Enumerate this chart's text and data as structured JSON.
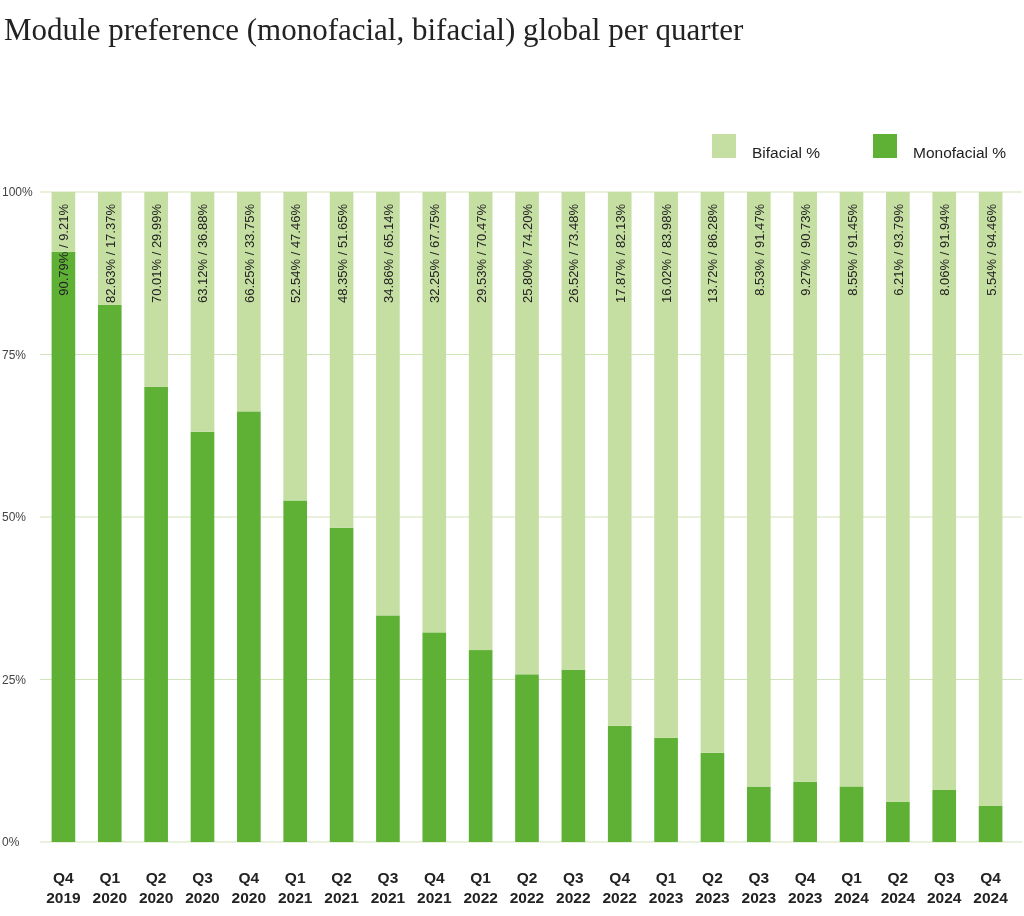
{
  "chart_data": {
    "type": "bar",
    "title": "Module preference (monofacial, bifacial) global per quarter",
    "categories": [
      "Q4 2019",
      "Q1 2020",
      "Q2 2020",
      "Q3 2020",
      "Q4 2020",
      "Q1 2021",
      "Q2 2021",
      "Q3 2021",
      "Q4 2021",
      "Q1 2022",
      "Q2 2022",
      "Q3 2022",
      "Q4 2022",
      "Q1 2023",
      "Q2 2023",
      "Q3 2023",
      "Q4 2023",
      "Q1 2024",
      "Q2 2024",
      "Q3 2024",
      "Q4 2024"
    ],
    "stacked": true,
    "series": [
      {
        "name": "Monofacial %",
        "color": "#5fb136",
        "values": [
          90.79,
          82.63,
          70.01,
          63.12,
          66.25,
          52.54,
          48.35,
          34.86,
          32.25,
          29.53,
          25.8,
          26.52,
          17.87,
          16.02,
          13.72,
          8.53,
          9.27,
          8.55,
          6.21,
          8.06,
          5.54
        ]
      },
      {
        "name": "Bifacial %",
        "color": "#c5dea2",
        "values": [
          9.21,
          17.37,
          29.99,
          36.88,
          33.75,
          47.46,
          51.65,
          65.14,
          67.75,
          70.47,
          74.2,
          73.48,
          82.13,
          83.98,
          86.28,
          91.47,
          90.73,
          91.45,
          93.79,
          91.94,
          94.46
        ],
        "value_labels": [
          "90.79% / 9.21%",
          "82.63% / 17.37%",
          "70.01% / 29.99%",
          "63.12% / 36.88%",
          "66.25% / 33.75%",
          "52.54% / 47.46%",
          "48.35% / 51.65%",
          "34.86% / 65.14%",
          "32.25% / 67.75%",
          "29.53% / 70.47%",
          "25.80% / 74.20%",
          "26.52% / 73.48%",
          "17.87% / 82.13%",
          "16.02% / 83.98%",
          "13.72% / 86.28%",
          "8.53% / 91.47%",
          "9.27% / 90.73%",
          "8.55% / 91.45%",
          "6.21% / 93.79%",
          "8.06% / 91.94%",
          "5.54% / 94.46%"
        ]
      }
    ],
    "ylim": [
      0,
      100
    ],
    "yticks": [
      {
        "value": 0,
        "label": "0%"
      },
      {
        "value": 25,
        "label": "25%"
      },
      {
        "value": 50,
        "label": "50%"
      },
      {
        "value": 75,
        "label": "75%"
      },
      {
        "value": 100,
        "label": "100%"
      }
    ],
    "grid": "y",
    "legend": "top right"
  }
}
